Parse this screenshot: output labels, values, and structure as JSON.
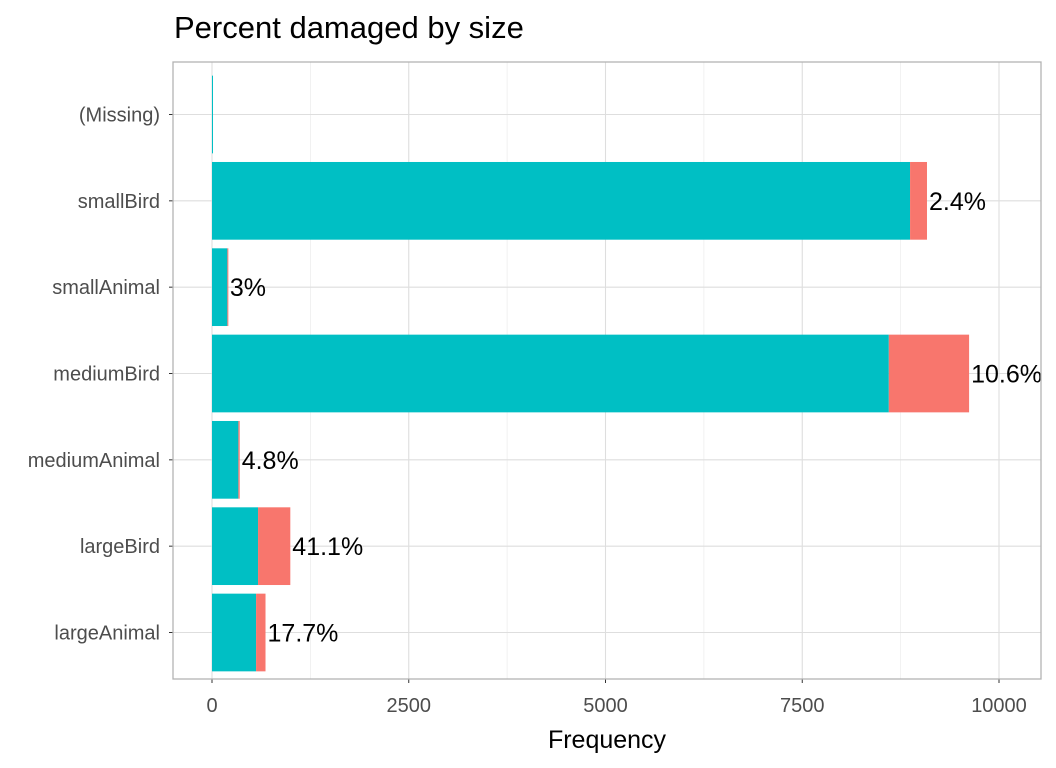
{
  "chart_data": {
    "type": "bar",
    "orientation": "horizontal",
    "stacked": true,
    "title": "Percent damaged by size",
    "xlabel": "Frequency",
    "ylabel": "",
    "xlim": [
      0,
      10000
    ],
    "xticks": [
      0,
      2500,
      5000,
      7500,
      10000
    ],
    "grid": true,
    "legend": "none",
    "categories": [
      "(Missing)",
      "smallBird",
      "smallAnimal",
      "mediumBird",
      "mediumAnimal",
      "largeBird",
      "largeAnimal"
    ],
    "series": [
      {
        "color": "#00BFC4",
        "values": [
          3,
          8870,
          195,
          8600,
          335,
          585,
          560
        ]
      },
      {
        "color": "#F8766D",
        "values": [
          0,
          215,
          6,
          1020,
          17,
          410,
          120
        ]
      }
    ],
    "data_labels": [
      "",
      "2.4%",
      "3%",
      "10.6%",
      "4.8%",
      "41.1%",
      "17.7%"
    ]
  }
}
